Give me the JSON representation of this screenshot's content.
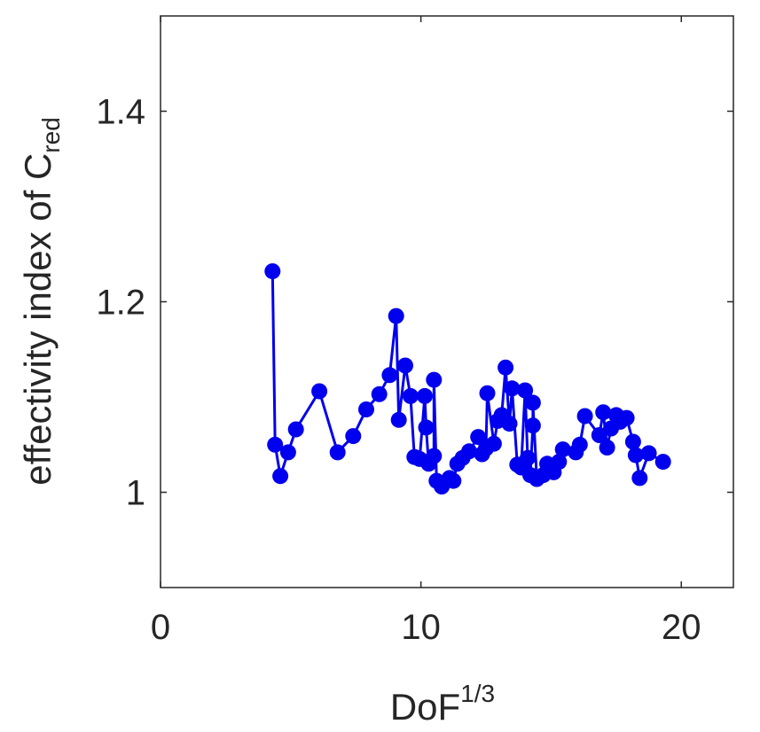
{
  "chart_data": {
    "type": "line",
    "xlabel": {
      "base": "DoF",
      "superscript": "1/3"
    },
    "ylabel": {
      "base": "effectivity index of C",
      "subscript": "red"
    },
    "xlim": [
      0,
      22
    ],
    "ylim": [
      0.9,
      1.5
    ],
    "xticks": [
      0,
      10,
      20
    ],
    "xtick_labels": [
      "0",
      "10",
      "20"
    ],
    "yticks": [
      1.0,
      1.2,
      1.4
    ],
    "ytick_labels": [
      "1",
      "1.2",
      "1.4"
    ],
    "grid": false,
    "box": true,
    "series": [
      {
        "color": "#0000ee",
        "marker": "circle",
        "points": [
          [
            4.3,
            1.232
          ],
          [
            4.4,
            1.05
          ],
          [
            4.6,
            1.017
          ],
          [
            4.9,
            1.042
          ],
          [
            5.2,
            1.066
          ],
          [
            6.1,
            1.106
          ],
          [
            6.8,
            1.042
          ],
          [
            7.4,
            1.059
          ],
          [
            7.9,
            1.087
          ],
          [
            8.4,
            1.103
          ],
          [
            8.8,
            1.123
          ],
          [
            9.05,
            1.185
          ],
          [
            9.15,
            1.076
          ],
          [
            9.4,
            1.133
          ],
          [
            9.6,
            1.101
          ],
          [
            9.75,
            1.037
          ],
          [
            9.95,
            1.035
          ],
          [
            10.15,
            1.101
          ],
          [
            10.2,
            1.068
          ],
          [
            10.3,
            1.03
          ],
          [
            10.5,
            1.038
          ],
          [
            10.5,
            1.118
          ],
          [
            10.6,
            1.012
          ],
          [
            10.8,
            1.006
          ],
          [
            11.1,
            1.015
          ],
          [
            11.25,
            1.012
          ],
          [
            11.4,
            1.03
          ],
          [
            11.6,
            1.036
          ],
          [
            11.85,
            1.043
          ],
          [
            12.2,
            1.058
          ],
          [
            12.35,
            1.04
          ],
          [
            12.5,
            1.046
          ],
          [
            12.55,
            1.104
          ],
          [
            12.8,
            1.051
          ],
          [
            12.95,
            1.075
          ],
          [
            13.1,
            1.081
          ],
          [
            13.25,
            1.131
          ],
          [
            13.4,
            1.072
          ],
          [
            13.5,
            1.109
          ],
          [
            13.7,
            1.029
          ],
          [
            13.85,
            1.026
          ],
          [
            14.0,
            1.107
          ],
          [
            14.1,
            1.036
          ],
          [
            14.2,
            1.018
          ],
          [
            14.3,
            1.07
          ],
          [
            14.3,
            1.094
          ],
          [
            14.45,
            1.014
          ],
          [
            14.7,
            1.018
          ],
          [
            14.85,
            1.03
          ],
          [
            15.1,
            1.021
          ],
          [
            15.3,
            1.032
          ],
          [
            15.45,
            1.045
          ],
          [
            15.95,
            1.042
          ],
          [
            16.1,
            1.05
          ],
          [
            16.3,
            1.08
          ],
          [
            16.85,
            1.06
          ],
          [
            17.0,
            1.084
          ],
          [
            17.15,
            1.047
          ],
          [
            17.3,
            1.067
          ],
          [
            17.5,
            1.081
          ],
          [
            17.65,
            1.074
          ],
          [
            17.9,
            1.078
          ],
          [
            18.15,
            1.053
          ],
          [
            18.25,
            1.039
          ],
          [
            18.4,
            1.015
          ],
          [
            18.75,
            1.041
          ],
          [
            19.3,
            1.032
          ]
        ]
      }
    ]
  }
}
